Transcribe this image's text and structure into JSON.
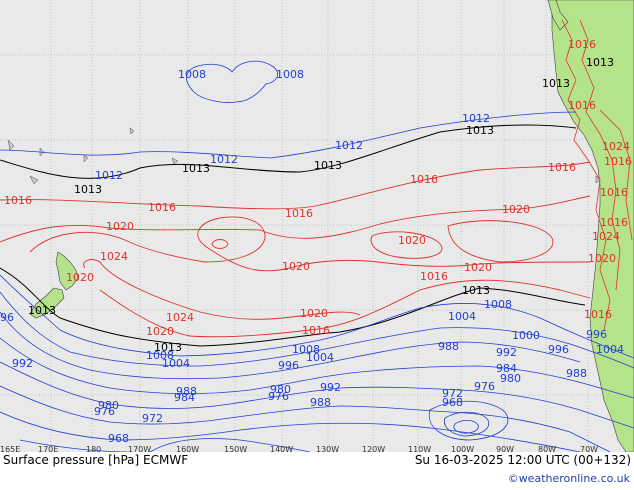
{
  "title": "Surface pressure [hPa] ECMWF",
  "valid_time": "Su 16-03-2025 12:00 UTC (00+132)",
  "credit": "©weatheronline.co.uk",
  "longitude_ticks": [
    "165E",
    "170E",
    "180",
    "170W",
    "160W",
    "150W",
    "140W",
    "130W",
    "120W",
    "110W",
    "100W",
    "90W",
    "80W",
    "70W"
  ],
  "colors": {
    "ocean": "#e9e9e9",
    "land": "#b5e38a",
    "coastline": "#404040",
    "high_isobars": "#e0322c",
    "mid_isobar": "#000000",
    "low_isobars": "#1f3fd6",
    "credit_text": "#1f3fa8"
  },
  "isobar_labels": [
    {
      "text": "1008",
      "color": "blue"
    },
    {
      "text": "1008",
      "color": "blue"
    },
    {
      "text": "1012",
      "color": "blue"
    },
    {
      "text": "1012",
      "color": "blue"
    },
    {
      "text": "1012",
      "color": "blue"
    },
    {
      "text": "1012",
      "color": "blue"
    },
    {
      "text": "1013",
      "color": "black"
    },
    {
      "text": "1013",
      "color": "black"
    },
    {
      "text": "1013",
      "color": "black"
    },
    {
      "text": "1013",
      "color": "black"
    },
    {
      "text": "1013",
      "color": "black"
    },
    {
      "text": "1013",
      "color": "black"
    },
    {
      "text": "1013",
      "color": "black"
    },
    {
      "text": "1013",
      "color": "black"
    },
    {
      "text": "1016",
      "color": "red"
    },
    {
      "text": "1016",
      "color": "red"
    },
    {
      "text": "1016",
      "color": "red"
    },
    {
      "text": "1016",
      "color": "red"
    },
    {
      "text": "1016",
      "color": "red"
    },
    {
      "text": "1016",
      "color": "red"
    },
    {
      "text": "1016",
      "color": "red"
    },
    {
      "text": "1016",
      "color": "red"
    },
    {
      "text": "1016",
      "color": "red"
    },
    {
      "text": "1020",
      "color": "red"
    },
    {
      "text": "1020",
      "color": "red"
    },
    {
      "text": "1020",
      "color": "red"
    },
    {
      "text": "1020",
      "color": "red"
    },
    {
      "text": "1020",
      "color": "red"
    },
    {
      "text": "1020",
      "color": "red"
    },
    {
      "text": "1020",
      "color": "red"
    },
    {
      "text": "1020",
      "color": "red"
    },
    {
      "text": "1020",
      "color": "red"
    },
    {
      "text": "1024",
      "color": "red"
    },
    {
      "text": "1024",
      "color": "red"
    },
    {
      "text": "1024",
      "color": "red"
    },
    {
      "text": "1024",
      "color": "red"
    },
    {
      "text": "1008",
      "color": "blue"
    },
    {
      "text": "1008",
      "color": "blue"
    },
    {
      "text": "1008",
      "color": "blue"
    },
    {
      "text": "1004",
      "color": "blue"
    },
    {
      "text": "1004",
      "color": "blue"
    },
    {
      "text": "1004",
      "color": "blue"
    },
    {
      "text": "1004",
      "color": "blue"
    },
    {
      "text": "1000",
      "color": "blue"
    },
    {
      "text": "996",
      "color": "blue"
    },
    {
      "text": "996",
      "color": "blue"
    },
    {
      "text": "996",
      "color": "blue"
    },
    {
      "text": "992",
      "color": "blue"
    },
    {
      "text": "992",
      "color": "blue"
    },
    {
      "text": "992",
      "color": "blue"
    },
    {
      "text": "988",
      "color": "blue"
    },
    {
      "text": "988",
      "color": "blue"
    },
    {
      "text": "988",
      "color": "blue"
    },
    {
      "text": "988",
      "color": "blue"
    },
    {
      "text": "984",
      "color": "blue"
    },
    {
      "text": "984",
      "color": "blue"
    },
    {
      "text": "980",
      "color": "blue"
    },
    {
      "text": "980",
      "color": "blue"
    },
    {
      "text": "980",
      "color": "blue"
    },
    {
      "text": "976",
      "color": "blue"
    },
    {
      "text": "976",
      "color": "blue"
    },
    {
      "text": "976",
      "color": "blue"
    },
    {
      "text": "972",
      "color": "blue"
    },
    {
      "text": "972",
      "color": "blue"
    },
    {
      "text": "968",
      "color": "blue"
    },
    {
      "text": "968",
      "color": "blue"
    },
    {
      "text": "96",
      "color": "blue"
    },
    {
      "text": "1013",
      "color": "black"
    },
    {
      "text": "1016",
      "color": "red"
    },
    {
      "text": "1016",
      "color": "red"
    },
    {
      "text": "1016",
      "color": "red"
    },
    {
      "text": "1016",
      "color": "red"
    }
  ]
}
